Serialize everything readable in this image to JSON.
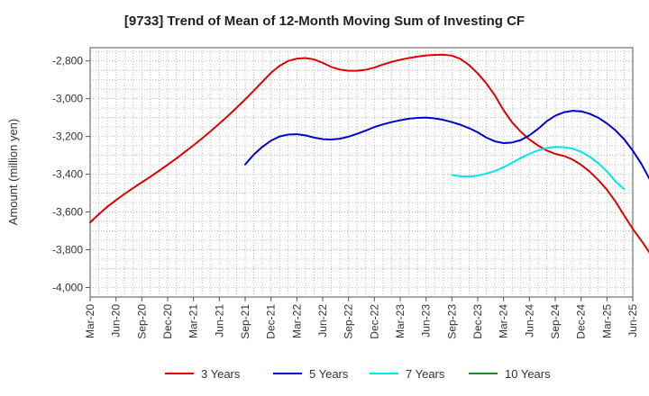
{
  "chart_data": {
    "type": "line",
    "title": "[9733]  Trend of Mean of 12-Month Moving Sum of Investing CF",
    "xlabel": "",
    "ylabel": "Amount (million yen)",
    "ylim": [
      -4050,
      -2730
    ],
    "yticks": [
      -2800,
      -3000,
      -3200,
      -3400,
      -3600,
      -3800,
      -4000
    ],
    "ytick_labels": [
      "-2,800",
      "-3,000",
      "-3,200",
      "-3,400",
      "-3,600",
      "-3,800",
      "-4,000"
    ],
    "xticks": [
      "Mar-20",
      "Jun-20",
      "Sep-20",
      "Dec-20",
      "Mar-21",
      "Jun-21",
      "Sep-21",
      "Dec-21",
      "Mar-22",
      "Jun-22",
      "Sep-22",
      "Dec-22",
      "Mar-23",
      "Jun-23",
      "Sep-23",
      "Dec-23",
      "Mar-24",
      "Jun-24",
      "Sep-24",
      "Dec-24",
      "Mar-25",
      "Jun-25"
    ],
    "grid": true,
    "legend_position": "bottom",
    "series": [
      {
        "name": "3 Years",
        "color": "#e00000",
        "start_index": 0,
        "values": [
          -3655,
          -3612,
          -3572,
          -3537,
          -3504,
          -3473,
          -3443,
          -3413,
          -3382,
          -3350,
          -3317,
          -3282,
          -3247,
          -3210,
          -3172,
          -3132,
          -3091,
          -3048,
          -3004,
          -2958,
          -2910,
          -2863,
          -2826,
          -2800,
          -2788,
          -2785,
          -2792,
          -2810,
          -2832,
          -2846,
          -2852,
          -2852,
          -2847,
          -2835,
          -2819,
          -2805,
          -2794,
          -2785,
          -2777,
          -2771,
          -2768,
          -2767,
          -2772,
          -2790,
          -2822,
          -2866,
          -2919,
          -2983,
          -3061,
          -3126,
          -3175,
          -3216,
          -3248,
          -3274,
          -3292,
          -3303,
          -3322,
          -3350,
          -3386,
          -3431,
          -3482,
          -3545,
          -3618,
          -3689,
          -3752,
          -3818,
          -3885,
          -3950,
          -4012,
          -4030
        ]
      },
      {
        "name": "5 Years",
        "color": "#0000cc",
        "start_index": 18,
        "values": [
          -3348,
          -3296,
          -3255,
          -3222,
          -3200,
          -3190,
          -3188,
          -3194,
          -3206,
          -3214,
          -3216,
          -3212,
          -3201,
          -3186,
          -3169,
          -3150,
          -3136,
          -3124,
          -3114,
          -3106,
          -3102,
          -3100,
          -3104,
          -3112,
          -3124,
          -3138,
          -3156,
          -3178,
          -3206,
          -3226,
          -3235,
          -3232,
          -3219,
          -3194,
          -3160,
          -3120,
          -3090,
          -3072,
          -3064,
          -3067,
          -3080,
          -3101,
          -3131,
          -3168,
          -3215,
          -3275,
          -3345,
          -3430
        ]
      },
      {
        "name": "7 Years",
        "color": "#00e5ee",
        "start_index": 42,
        "values": [
          -3404,
          -3411,
          -3412,
          -3407,
          -3397,
          -3383,
          -3363,
          -3339,
          -3314,
          -3292,
          -3274,
          -3261,
          -3256,
          -3257,
          -3264,
          -3281,
          -3307,
          -3342,
          -3385,
          -3438,
          -3478
        ]
      },
      {
        "name": "10 Years",
        "color": "#228b22",
        "start_index": 0,
        "values": []
      }
    ]
  }
}
